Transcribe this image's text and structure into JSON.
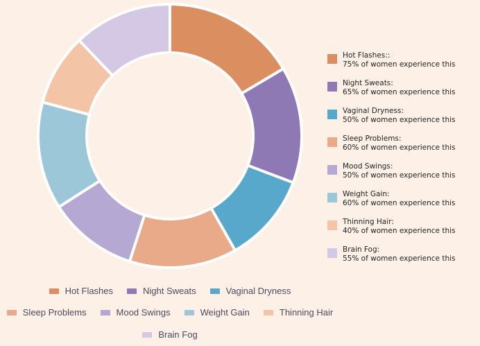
{
  "chart_data": {
    "type": "pie",
    "variant": "donut",
    "categories": [
      "Hot Flashes",
      "Night Sweats",
      "Vaginal Dryness",
      "Sleep Problems",
      "Mood Swings",
      "Weight Gain",
      "Thinning Hair",
      "Brain Fog"
    ],
    "values": [
      75,
      65,
      50,
      60,
      50,
      60,
      40,
      55
    ],
    "colors": [
      "#db8f60",
      "#8e79b5",
      "#57a8cb",
      "#e8aa88",
      "#b5a8d2",
      "#9bc7d9",
      "#f3c5a6",
      "#d5c8e4"
    ],
    "side_legend": [
      {
        "title": "Hot Flashes::",
        "desc": "75% of women experience this"
      },
      {
        "title": "Night Sweats:",
        "desc": "65% of women experience this"
      },
      {
        "title": "Vaginal Dryness:",
        "desc": "50% of women experience this"
      },
      {
        "title": "Sleep Problems:",
        "desc": "60% of women experience this"
      },
      {
        "title": "Mood Swings:",
        "desc": "50% of women experience this"
      },
      {
        "title": "Weight Gain:",
        "desc": "60% of women experience this"
      },
      {
        "title": "Thinning Hair:",
        "desc": "40% of women experience this"
      },
      {
        "title": "Brain Fog:",
        "desc": "55% of women experience this"
      }
    ],
    "legend_placement": "right and bottom"
  }
}
